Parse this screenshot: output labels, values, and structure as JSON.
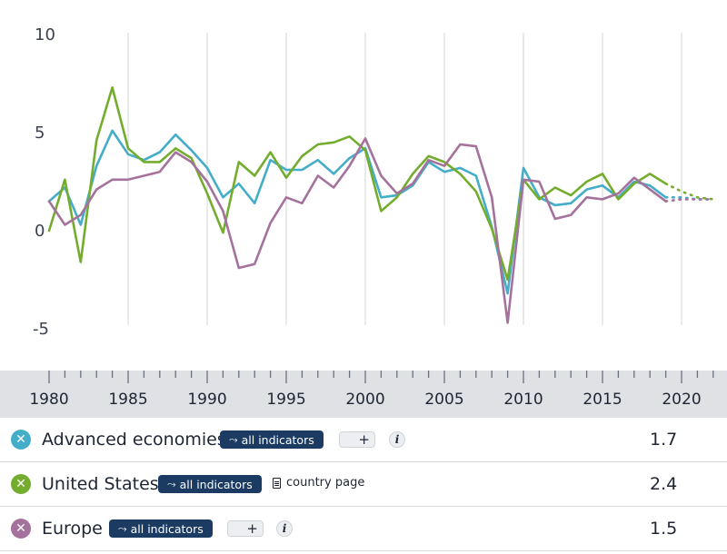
{
  "chart_data": {
    "type": "line",
    "ylim": [
      -5,
      10
    ],
    "xlim": [
      1979.5,
      2022.5
    ],
    "y_ticks": [
      "10",
      "5",
      "0",
      "-5"
    ],
    "x_ticks": [
      "1980",
      "1985",
      "1990",
      "1995",
      "2000",
      "2005",
      "2010",
      "2015",
      "2020"
    ],
    "grid": "vertical",
    "x": [
      1980,
      1981,
      1982,
      1983,
      1984,
      1985,
      1986,
      1987,
      1988,
      1989,
      1990,
      1991,
      1992,
      1993,
      1994,
      1995,
      1996,
      1997,
      1998,
      1999,
      2000,
      2001,
      2002,
      2003,
      2004,
      2005,
      2006,
      2007,
      2008,
      2009,
      2010,
      2011,
      2012,
      2013,
      2014,
      2015,
      2016,
      2017,
      2018,
      2019
    ],
    "projection_x": [
      2019,
      2020,
      2021,
      2022
    ],
    "series": [
      {
        "name": "Advanced economies",
        "color": "#44adc7",
        "values": [
          1.5,
          2.2,
          0.3,
          3.3,
          5.1,
          3.9,
          3.6,
          4.0,
          4.9,
          4.1,
          3.2,
          1.7,
          2.4,
          1.4,
          3.6,
          3.1,
          3.1,
          3.6,
          2.9,
          3.7,
          4.2,
          1.7,
          1.8,
          2.3,
          3.5,
          3.0,
          3.2,
          2.8,
          0.2,
          -3.2,
          3.2,
          1.7,
          1.3,
          1.4,
          2.1,
          2.3,
          1.7,
          2.5,
          2.3,
          1.7
        ],
        "projection": [
          1.7,
          1.7,
          1.6,
          1.6
        ]
      },
      {
        "name": "United States",
        "color": "#74ad2e",
        "values": [
          0.0,
          2.6,
          -1.6,
          4.6,
          7.3,
          4.2,
          3.5,
          3.5,
          4.2,
          3.7,
          1.9,
          -0.1,
          3.5,
          2.8,
          4.0,
          2.7,
          3.8,
          4.4,
          4.5,
          4.8,
          4.1,
          1.0,
          1.7,
          2.9,
          3.8,
          3.5,
          2.9,
          2.0,
          0.1,
          -2.5,
          2.6,
          1.6,
          2.2,
          1.8,
          2.5,
          2.9,
          1.6,
          2.4,
          2.9,
          2.4
        ],
        "projection": [
          2.4,
          2.0,
          1.7,
          1.6
        ]
      },
      {
        "name": "Europe",
        "color": "#a4729c",
        "values": [
          1.5,
          0.3,
          0.8,
          2.1,
          2.6,
          2.6,
          2.8,
          3.0,
          4.0,
          3.5,
          2.5,
          1.0,
          -1.9,
          -1.7,
          0.4,
          1.7,
          1.4,
          2.8,
          2.2,
          3.3,
          4.7,
          2.8,
          1.9,
          2.4,
          3.6,
          3.3,
          4.4,
          4.3,
          1.7,
          -4.7,
          2.6,
          2.5,
          0.6,
          0.8,
          1.7,
          1.6,
          1.9,
          2.7,
          2.1,
          1.5
        ],
        "projection": [
          1.5,
          1.6,
          1.6,
          1.6
        ]
      }
    ]
  },
  "legend": {
    "rows": [
      {
        "name": "Advanced economies",
        "color": "#44adc7",
        "value": "1.7",
        "pill": "all indicators",
        "has_plus": true,
        "has_info": true,
        "country_page": ""
      },
      {
        "name": "United States",
        "color": "#74ad2e",
        "value": "2.4",
        "pill": "all indicators",
        "has_plus": false,
        "has_info": false,
        "country_page": "country page"
      },
      {
        "name": "Europe",
        "color": "#a4729c",
        "value": "1.5",
        "pill": "all indicators",
        "has_plus": true,
        "has_info": true,
        "country_page": ""
      }
    ],
    "remove_glyph": "✕",
    "pill_icon": "trend-line-icon",
    "plus_glyph": "+",
    "info_glyph": "i"
  }
}
